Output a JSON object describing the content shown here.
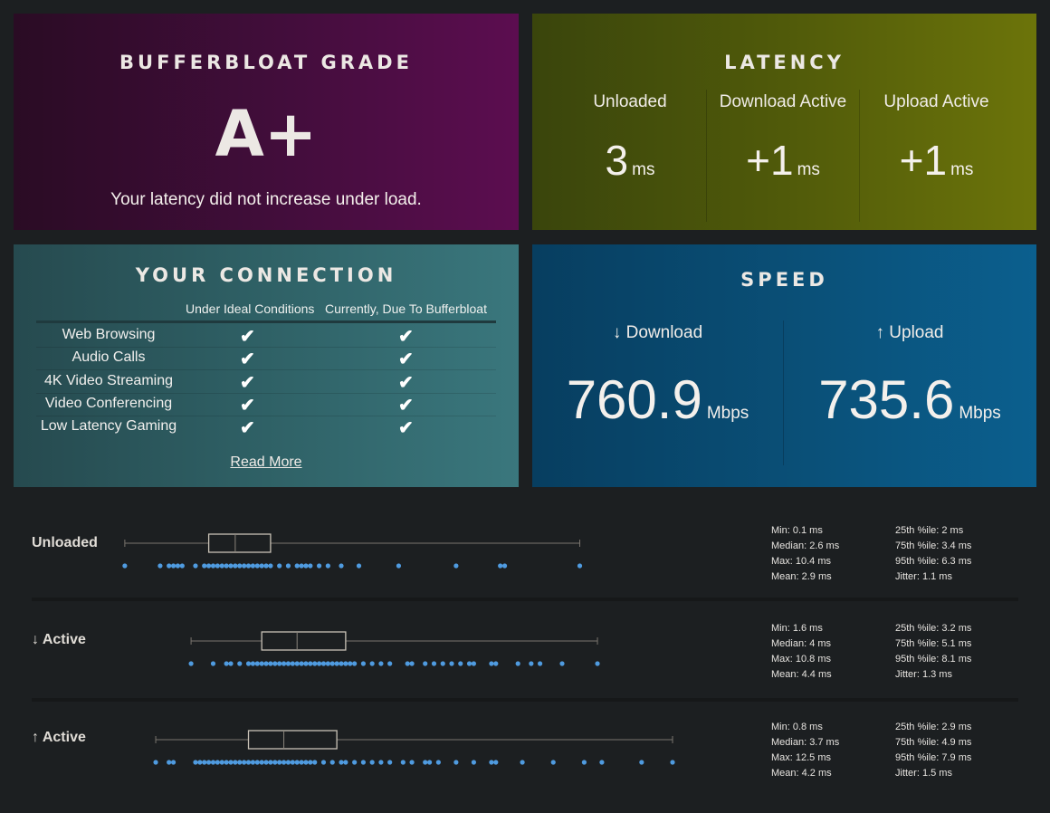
{
  "grade": {
    "title": "BUFFERBLOAT GRADE",
    "value": "A+",
    "description": "Your latency did not increase under load."
  },
  "latency": {
    "title": "LATENCY",
    "unit": "ms",
    "columns": [
      {
        "label": "Unloaded",
        "value": "3"
      },
      {
        "label": "Download Active",
        "value": "+1"
      },
      {
        "label": "Upload Active",
        "value": "+1"
      }
    ]
  },
  "connection": {
    "title": "YOUR CONNECTION",
    "col_ideal": "Under Ideal Conditions",
    "col_current": "Currently, Due To Bufferbloat",
    "rows": [
      {
        "name": "Web Browsing",
        "ideal": "✔",
        "current": "✔"
      },
      {
        "name": "Audio Calls",
        "ideal": "✔",
        "current": "✔"
      },
      {
        "name": "4K Video Streaming",
        "ideal": "✔",
        "current": "✔"
      },
      {
        "name": "Video Conferencing",
        "ideal": "✔",
        "current": "✔"
      },
      {
        "name": "Low Latency Gaming",
        "ideal": "✔",
        "current": "✔"
      }
    ],
    "read_more": "Read More"
  },
  "speed": {
    "title": "SPEED",
    "unit": "Mbps",
    "download": {
      "label": "↓ Download",
      "value": "760.9"
    },
    "upload": {
      "label": "↑ Upload",
      "value": "735.6"
    }
  },
  "latency_stats": [
    {
      "label": "Unloaded",
      "min": 0.1,
      "q1": 2,
      "median": 2.6,
      "q3": 3.4,
      "max": 10.4,
      "text": {
        "min": "Min: 0.1 ms",
        "median": "Median: 2.6 ms",
        "max": "Max: 10.4 ms",
        "mean": "Mean: 2.9 ms",
        "p25": "25th %ile: 2 ms",
        "p75": "75th %ile: 3.4 ms",
        "p95": "95th %ile: 6.3 ms",
        "jitter": "Jitter: 1.1 ms"
      },
      "points": [
        0.1,
        0.9,
        1.1,
        1.2,
        1.3,
        1.4,
        1.7,
        1.9,
        2.0,
        2.1,
        2.2,
        2.3,
        2.4,
        2.5,
        2.6,
        2.7,
        2.8,
        2.9,
        3.0,
        3.1,
        3.2,
        3.3,
        3.4,
        3.6,
        3.8,
        4.0,
        4.1,
        4.2,
        4.3,
        4.5,
        4.7,
        5.0,
        5.4,
        6.3,
        7.6,
        8.6,
        8.7,
        10.4
      ]
    },
    {
      "label": "↓ Active",
      "min": 1.6,
      "q1": 3.2,
      "median": 4,
      "q3": 5.1,
      "max": 10.8,
      "text": {
        "min": "Min: 1.6 ms",
        "median": "Median: 4 ms",
        "max": "Max: 10.8 ms",
        "mean": "Mean: 4.4 ms",
        "p25": "25th %ile: 3.2 ms",
        "p75": "75th %ile: 5.1 ms",
        "p95": "95th %ile: 8.1 ms",
        "jitter": "Jitter: 1.3 ms"
      },
      "points": [
        1.6,
        2.1,
        2.4,
        2.5,
        2.7,
        2.9,
        3.0,
        3.1,
        3.2,
        3.3,
        3.4,
        3.5,
        3.6,
        3.7,
        3.8,
        3.9,
        4.0,
        4.1,
        4.2,
        4.3,
        4.4,
        4.5,
        4.6,
        4.7,
        4.8,
        4.9,
        5.0,
        5.1,
        5.2,
        5.3,
        5.5,
        5.7,
        5.9,
        6.1,
        6.5,
        6.6,
        6.9,
        7.1,
        7.3,
        7.5,
        7.7,
        7.9,
        8.0,
        8.4,
        8.5,
        9.0,
        9.3,
        9.5,
        10.0,
        10.8
      ]
    },
    {
      "label": "↑ Active",
      "min": 0.8,
      "q1": 2.9,
      "median": 3.7,
      "q3": 4.9,
      "max": 12.5,
      "text": {
        "min": "Min: 0.8 ms",
        "median": "Median: 3.7 ms",
        "max": "Max: 12.5 ms",
        "mean": "Mean: 4.2 ms",
        "p25": "25th %ile: 2.9 ms",
        "p75": "75th %ile: 4.9 ms",
        "p95": "95th %ile: 7.9 ms",
        "jitter": "Jitter: 1.5 ms"
      },
      "points": [
        0.8,
        1.1,
        1.2,
        1.7,
        1.8,
        1.9,
        2.0,
        2.1,
        2.2,
        2.3,
        2.4,
        2.5,
        2.6,
        2.7,
        2.8,
        2.9,
        3.0,
        3.1,
        3.2,
        3.3,
        3.4,
        3.5,
        3.6,
        3.7,
        3.8,
        3.9,
        4.0,
        4.1,
        4.2,
        4.3,
        4.4,
        4.6,
        4.8,
        5.0,
        5.1,
        5.3,
        5.5,
        5.7,
        5.9,
        6.1,
        6.4,
        6.6,
        6.9,
        7.0,
        7.2,
        7.6,
        8.0,
        8.4,
        8.5,
        9.1,
        9.8,
        10.5,
        10.9,
        11.8,
        12.5
      ]
    }
  ],
  "colors": {
    "dot": "#4f9be0",
    "box_stroke": "#c9c2b6",
    "box_fill": "#1c1f21"
  },
  "icons": {
    "check": "check-icon"
  }
}
